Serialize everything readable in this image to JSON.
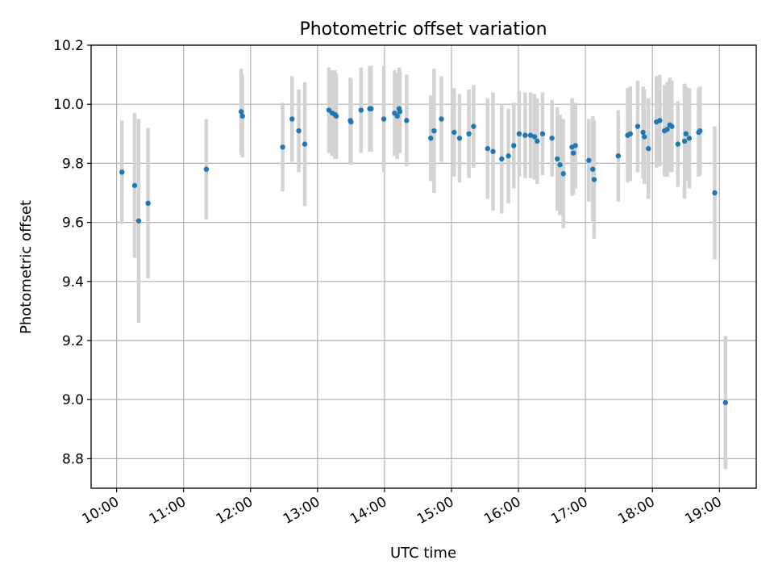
{
  "chart_data": {
    "type": "scatter",
    "title": "Photometric offset variation",
    "xlabel": "UTC time",
    "ylabel": "Photometric offset",
    "grid": true,
    "xlim": [
      9.62,
      19.55
    ],
    "ylim": [
      8.7,
      10.2
    ],
    "x_unit": "hours (UTC)",
    "x_ticks": [
      10,
      11,
      12,
      13,
      14,
      15,
      16,
      17,
      18,
      19
    ],
    "x_tick_labels": [
      "10:00",
      "11:00",
      "12:00",
      "13:00",
      "14:00",
      "15:00",
      "16:00",
      "17:00",
      "18:00",
      "19:00"
    ],
    "y_ticks": [
      8.8,
      9.0,
      9.2,
      9.4,
      9.6,
      9.8,
      10.0,
      10.2
    ],
    "y_tick_labels": [
      "8.8",
      "9.0",
      "9.2",
      "9.4",
      "9.6",
      "9.8",
      "10.0",
      "10.2"
    ],
    "colors": {
      "point": "#1f77b4",
      "errorbar": "#d3d3d3"
    },
    "series": [
      {
        "name": "offset",
        "x": [
          10.08,
          10.27,
          10.33,
          10.47,
          11.34,
          11.86,
          11.88,
          12.48,
          12.62,
          12.72,
          12.81,
          13.17,
          13.22,
          13.26,
          13.28,
          13.49,
          13.5,
          13.65,
          13.78,
          13.8,
          13.99,
          14.15,
          14.19,
          14.22,
          14.23,
          14.33,
          14.69,
          14.74,
          14.85,
          15.04,
          15.12,
          15.26,
          15.33,
          15.54,
          15.62,
          15.75,
          15.85,
          15.93,
          16.01,
          16.1,
          16.18,
          16.24,
          16.28,
          16.36,
          16.5,
          16.58,
          16.62,
          16.67,
          16.8,
          16.82,
          16.85,
          17.05,
          17.11,
          17.13,
          17.49,
          17.63,
          17.67,
          17.78,
          17.86,
          17.88,
          17.94,
          18.06,
          18.11,
          18.18,
          18.22,
          18.26,
          18.29,
          18.38,
          18.48,
          18.5,
          18.55,
          18.69,
          18.71,
          18.93,
          19.09
        ],
        "y": [
          9.77,
          9.725,
          9.605,
          9.665,
          9.78,
          9.975,
          9.96,
          9.855,
          9.95,
          9.91,
          9.865,
          9.98,
          9.97,
          9.965,
          9.96,
          9.945,
          9.94,
          9.98,
          9.985,
          9.985,
          9.95,
          9.97,
          9.96,
          9.985,
          9.975,
          9.945,
          9.885,
          9.91,
          9.95,
          9.905,
          9.885,
          9.9,
          9.925,
          9.85,
          9.84,
          9.815,
          9.825,
          9.86,
          9.9,
          9.895,
          9.895,
          9.89,
          9.875,
          9.9,
          9.885,
          9.815,
          9.795,
          9.765,
          9.855,
          9.835,
          9.86,
          9.81,
          9.78,
          9.745,
          9.825,
          9.895,
          9.9,
          9.925,
          9.905,
          9.89,
          9.85,
          9.94,
          9.945,
          9.91,
          9.915,
          9.93,
          9.925,
          9.865,
          9.875,
          9.9,
          9.885,
          9.905,
          9.91,
          9.7,
          8.99
        ],
        "err": [
          0.175,
          0.245,
          0.345,
          0.255,
          0.17,
          0.145,
          0.14,
          0.15,
          0.145,
          0.14,
          0.21,
          0.145,
          0.145,
          0.15,
          0.145,
          0.145,
          0.145,
          0.145,
          0.145,
          0.145,
          0.18,
          0.145,
          0.145,
          0.14,
          0.14,
          0.155,
          0.145,
          0.21,
          0.145,
          0.15,
          0.15,
          0.15,
          0.14,
          0.17,
          0.2,
          0.185,
          0.16,
          0.145,
          0.145,
          0.145,
          0.145,
          0.145,
          0.145,
          0.14,
          0.13,
          0.175,
          0.17,
          0.185,
          0.165,
          0.14,
          0.145,
          0.14,
          0.18,
          0.2,
          0.155,
          0.16,
          0.16,
          0.155,
          0.155,
          0.16,
          0.17,
          0.155,
          0.155,
          0.155,
          0.16,
          0.16,
          0.155,
          0.145,
          0.195,
          0.16,
          0.17,
          0.15,
          0.15,
          0.225,
          0.225
        ]
      }
    ]
  }
}
